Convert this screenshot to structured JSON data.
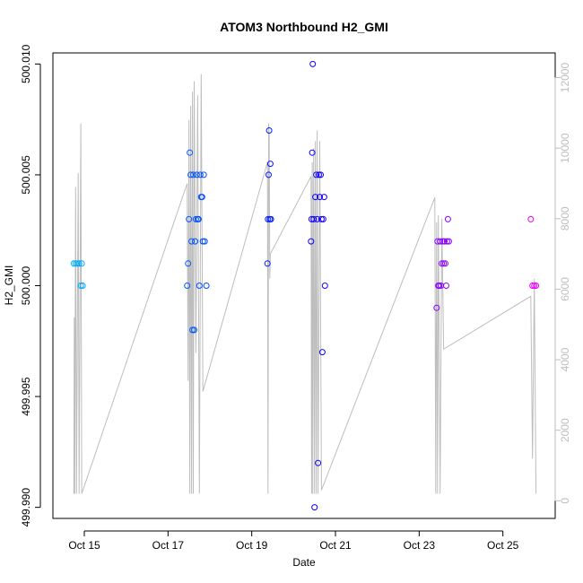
{
  "chart_data": {
    "type": "scatter",
    "title": "ATOM3 Northbound H2_GMI",
    "xlabel": "Date",
    "ylabel": "H2_GMI",
    "x_range": [
      "2016-10-14T06:00",
      "2016-10-26T06:00"
    ],
    "ylim": [
      499.9895,
      500.0105
    ],
    "y_ticks": [
      "499.990",
      "499.995",
      "500.000",
      "500.005",
      "500.010"
    ],
    "y_tick_values": [
      499.99,
      499.995,
      500.0,
      500.005,
      500.01
    ],
    "x_ticks": [
      "Oct 15",
      "Oct 17",
      "Oct 19",
      "Oct 21",
      "Oct 23",
      "Oct 25"
    ],
    "x_tick_values": [
      "2016-10-15",
      "2016-10-17",
      "2016-10-19",
      "2016-10-21",
      "2016-10-23",
      "2016-10-25"
    ],
    "right_axis": {
      "ticks": [
        "0",
        "2000",
        "4000",
        "6000",
        "8000",
        "10000",
        "12000"
      ],
      "tick_values": [
        0,
        2000,
        4000,
        6000,
        8000,
        10000,
        12000
      ],
      "lim": [
        -500,
        12700
      ],
      "color": "#bdbdbd"
    },
    "grid": false,
    "legend": "none",
    "point_color_gradient": [
      "#00bfff",
      "#0000ff",
      "#ff00ff"
    ],
    "series": [
      {
        "type": "scatter",
        "points": [
          [
            "2016-10-14T18:00",
            500.001
          ],
          [
            "2016-10-14T19:00",
            500.001
          ],
          [
            "2016-10-14T20:00",
            500.001
          ],
          [
            "2016-10-14T21:00",
            500.001
          ],
          [
            "2016-10-14T22:00",
            500.0
          ],
          [
            "2016-10-14T23:00",
            500.0
          ],
          [
            "2016-10-14T22:30",
            500.001
          ],
          [
            "2016-10-17T11:00",
            500.0
          ],
          [
            "2016-10-17T11:30",
            500.001
          ],
          [
            "2016-10-17T12:00",
            500.003
          ],
          [
            "2016-10-17T12:30",
            500.006
          ],
          [
            "2016-10-17T13:00",
            500.005
          ],
          [
            "2016-10-17T13:30",
            500.002
          ],
          [
            "2016-10-17T14:00",
            499.998
          ],
          [
            "2016-10-17T14:30",
            500.005
          ],
          [
            "2016-10-17T15:00",
            499.998
          ],
          [
            "2016-10-17T15:30",
            500.002
          ],
          [
            "2016-10-17T16:00",
            500.003
          ],
          [
            "2016-10-17T16:30",
            500.005
          ],
          [
            "2016-10-17T17:00",
            500.003
          ],
          [
            "2016-10-17T17:30",
            500.003
          ],
          [
            "2016-10-17T18:00",
            500.0
          ],
          [
            "2016-10-17T18:30",
            500.005
          ],
          [
            "2016-10-17T19:00",
            500.004
          ],
          [
            "2016-10-17T19:30",
            500.004
          ],
          [
            "2016-10-17T20:00",
            500.002
          ],
          [
            "2016-10-17T20:30",
            500.005
          ],
          [
            "2016-10-17T21:00",
            500.002
          ],
          [
            "2016-10-17T22:00",
            500.0
          ],
          [
            "2016-10-19T09:00",
            500.001
          ],
          [
            "2016-10-19T09:20",
            500.003
          ],
          [
            "2016-10-19T09:40",
            500.005
          ],
          [
            "2016-10-19T10:00",
            500.007
          ],
          [
            "2016-10-19T10:20",
            500.003
          ],
          [
            "2016-10-19T10:40",
            500.0055
          ],
          [
            "2016-10-19T11:00",
            500.003
          ],
          [
            "2016-10-20T10:00",
            500.002
          ],
          [
            "2016-10-20T10:20",
            500.003
          ],
          [
            "2016-10-20T10:40",
            500.006
          ],
          [
            "2016-10-20T11:00",
            500.01
          ],
          [
            "2016-10-20T11:30",
            500.003
          ],
          [
            "2016-10-20T12:00",
            499.99
          ],
          [
            "2016-10-20T12:30",
            500.004
          ],
          [
            "2016-10-20T13:00",
            500.005
          ],
          [
            "2016-10-20T13:30",
            500.003
          ],
          [
            "2016-10-20T14:00",
            499.992
          ],
          [
            "2016-10-20T14:30",
            500.005
          ],
          [
            "2016-10-20T15:00",
            500.004
          ],
          [
            "2016-10-20T15:30",
            500.005
          ],
          [
            "2016-10-20T16:00",
            500.003
          ],
          [
            "2016-10-20T16:30",
            499.997
          ],
          [
            "2016-10-20T17:00",
            500.003
          ],
          [
            "2016-10-20T17:30",
            500.004
          ],
          [
            "2016-10-20T18:00",
            500.0
          ],
          [
            "2016-10-23T10:00",
            499.999
          ],
          [
            "2016-10-23T10:30",
            500.002
          ],
          [
            "2016-10-23T11:00",
            500.0
          ],
          [
            "2016-10-23T11:30",
            500.0
          ],
          [
            "2016-10-23T12:00",
            500.002
          ],
          [
            "2016-10-23T12:30",
            500.0
          ],
          [
            "2016-10-23T13:00",
            500.001
          ],
          [
            "2016-10-23T13:30",
            500.002
          ],
          [
            "2016-10-23T14:00",
            500.001
          ],
          [
            "2016-10-23T14:30",
            500.002
          ],
          [
            "2016-10-23T15:00",
            500.001
          ],
          [
            "2016-10-23T15:30",
            500.0
          ],
          [
            "2016-10-23T16:00",
            500.002
          ],
          [
            "2016-10-23T16:30",
            500.003
          ],
          [
            "2016-10-23T17:00",
            500.002
          ],
          [
            "2016-10-25T16:00",
            500.003
          ],
          [
            "2016-10-25T17:00",
            500.0
          ],
          [
            "2016-10-25T18:00",
            500.0
          ],
          [
            "2016-10-25T19:00",
            500.0
          ]
        ]
      },
      {
        "type": "line",
        "axis": "right",
        "color": "#bdbdbd",
        "points": [
          [
            "2016-10-14T18:00",
            200
          ],
          [
            "2016-10-14T18:15",
            5200
          ],
          [
            "2016-10-14T18:30",
            200
          ],
          [
            "2016-10-14T19:00",
            8900
          ],
          [
            "2016-10-14T19:30",
            200
          ],
          [
            "2016-10-14T20:30",
            9300
          ],
          [
            "2016-10-14T21:00",
            200
          ],
          [
            "2016-10-14T22:00",
            10700
          ],
          [
            "2016-10-14T22:30",
            200
          ],
          [
            "2016-10-17T11:00",
            9000
          ],
          [
            "2016-10-17T11:30",
            3400
          ],
          [
            "2016-10-17T12:00",
            10800
          ],
          [
            "2016-10-17T12:30",
            200
          ],
          [
            "2016-10-17T13:00",
            11200
          ],
          [
            "2016-10-17T13:30",
            200
          ],
          [
            "2016-10-17T14:00",
            11600
          ],
          [
            "2016-10-17T14:30",
            200
          ],
          [
            "2016-10-17T15:00",
            11900
          ],
          [
            "2016-10-17T16:00",
            4200
          ],
          [
            "2016-10-17T17:00",
            11500
          ],
          [
            "2016-10-17T18:00",
            200
          ],
          [
            "2016-10-17T19:00",
            12100
          ],
          [
            "2016-10-17T20:00",
            3100
          ],
          [
            "2016-10-19T09:00",
            9600
          ],
          [
            "2016-10-19T09:20",
            200
          ],
          [
            "2016-10-19T09:40",
            10700
          ],
          [
            "2016-10-19T10:00",
            10400
          ],
          [
            "2016-10-19T10:20",
            6300
          ],
          [
            "2016-10-19T10:40",
            7000
          ],
          [
            "2016-10-20T10:00",
            9200
          ],
          [
            "2016-10-20T10:20",
            200
          ],
          [
            "2016-10-20T10:40",
            9600
          ],
          [
            "2016-10-20T11:00",
            200
          ],
          [
            "2016-10-20T11:30",
            10000
          ],
          [
            "2016-10-20T12:00",
            200
          ],
          [
            "2016-10-20T12:30",
            10200
          ],
          [
            "2016-10-20T13:00",
            200
          ],
          [
            "2016-10-20T13:30",
            10500
          ],
          [
            "2016-10-20T14:00",
            200
          ],
          [
            "2016-10-20T15:00",
            10200
          ],
          [
            "2016-10-20T16:00",
            300
          ],
          [
            "2016-10-23T09:00",
            8600
          ],
          [
            "2016-10-23T09:30",
            200
          ],
          [
            "2016-10-23T10:00",
            7900
          ],
          [
            "2016-10-23T10:30",
            200
          ],
          [
            "2016-10-23T11:00",
            8100
          ],
          [
            "2016-10-23T12:00",
            200
          ],
          [
            "2016-10-23T13:00",
            8000
          ],
          [
            "2016-10-23T14:00",
            4300
          ],
          [
            "2016-10-25T16:00",
            5800
          ],
          [
            "2016-10-25T17:00",
            1200
          ],
          [
            "2016-10-25T18:00",
            6300
          ],
          [
            "2016-10-25T19:00",
            200
          ]
        ]
      }
    ]
  }
}
